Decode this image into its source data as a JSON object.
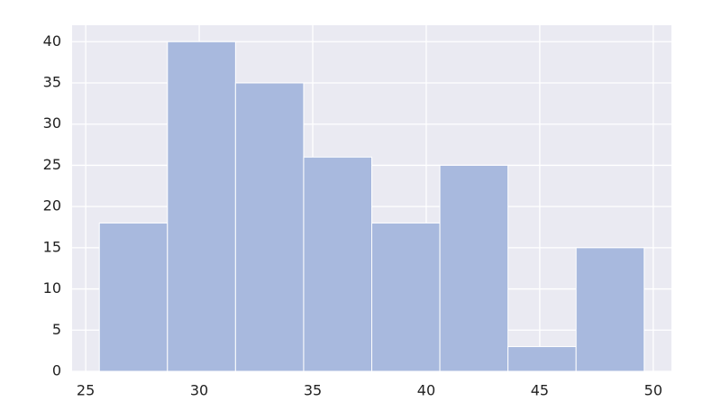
{
  "chart_data": {
    "type": "histogram",
    "bins": [
      25.6,
      28.6,
      31.6,
      34.6,
      37.6,
      40.6,
      43.6,
      46.6,
      49.6
    ],
    "values": [
      18,
      40,
      35,
      26,
      18,
      25,
      3,
      15
    ],
    "color": "#a8b9de",
    "xlim": [
      24.4,
      50.8
    ],
    "xticks": [
      25,
      30,
      35,
      40,
      45,
      50
    ],
    "ylim": [
      0,
      42
    ],
    "yticks": [
      0,
      5,
      10,
      15,
      20,
      25,
      30,
      35,
      40
    ],
    "grid": true
  }
}
